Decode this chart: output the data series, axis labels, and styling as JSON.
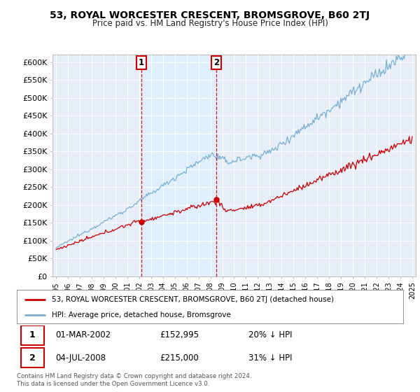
{
  "title": "53, ROYAL WORCESTER CRESCENT, BROMSGROVE, B60 2TJ",
  "subtitle": "Price paid vs. HM Land Registry's House Price Index (HPI)",
  "legend_line1": "53, ROYAL WORCESTER CRESCENT, BROMSGROVE, B60 2TJ (detached house)",
  "legend_line2": "HPI: Average price, detached house, Bromsgrove",
  "footer": "Contains HM Land Registry data © Crown copyright and database right 2024.\nThis data is licensed under the Open Government Licence v3.0.",
  "transactions": [
    {
      "label": "1",
      "date": "01-MAR-2002",
      "price": "£152,995",
      "hpi": "20% ↓ HPI",
      "year": 2002.17,
      "price_val": 152995
    },
    {
      "label": "2",
      "date": "04-JUL-2008",
      "price": "£215,000",
      "hpi": "31% ↓ HPI",
      "year": 2008.5,
      "price_val": 215000
    }
  ],
  "property_color": "#cc0000",
  "hpi_color": "#7ab0d4",
  "vline_color": "#cc0000",
  "shade_color": "#ddeeff",
  "background_color": "#ffffff",
  "plot_bg_color": "#e8eef8",
  "ylim": [
    0,
    620000
  ],
  "xlim_start": 1994.7,
  "xlim_end": 2025.3,
  "yticks": [
    0,
    50000,
    100000,
    150000,
    200000,
    250000,
    300000,
    350000,
    400000,
    450000,
    500000,
    550000,
    600000
  ],
  "ytick_labels": [
    "£0",
    "£50K",
    "£100K",
    "£150K",
    "£200K",
    "£250K",
    "£300K",
    "£350K",
    "£400K",
    "£450K",
    "£500K",
    "£550K",
    "£600K"
  ]
}
